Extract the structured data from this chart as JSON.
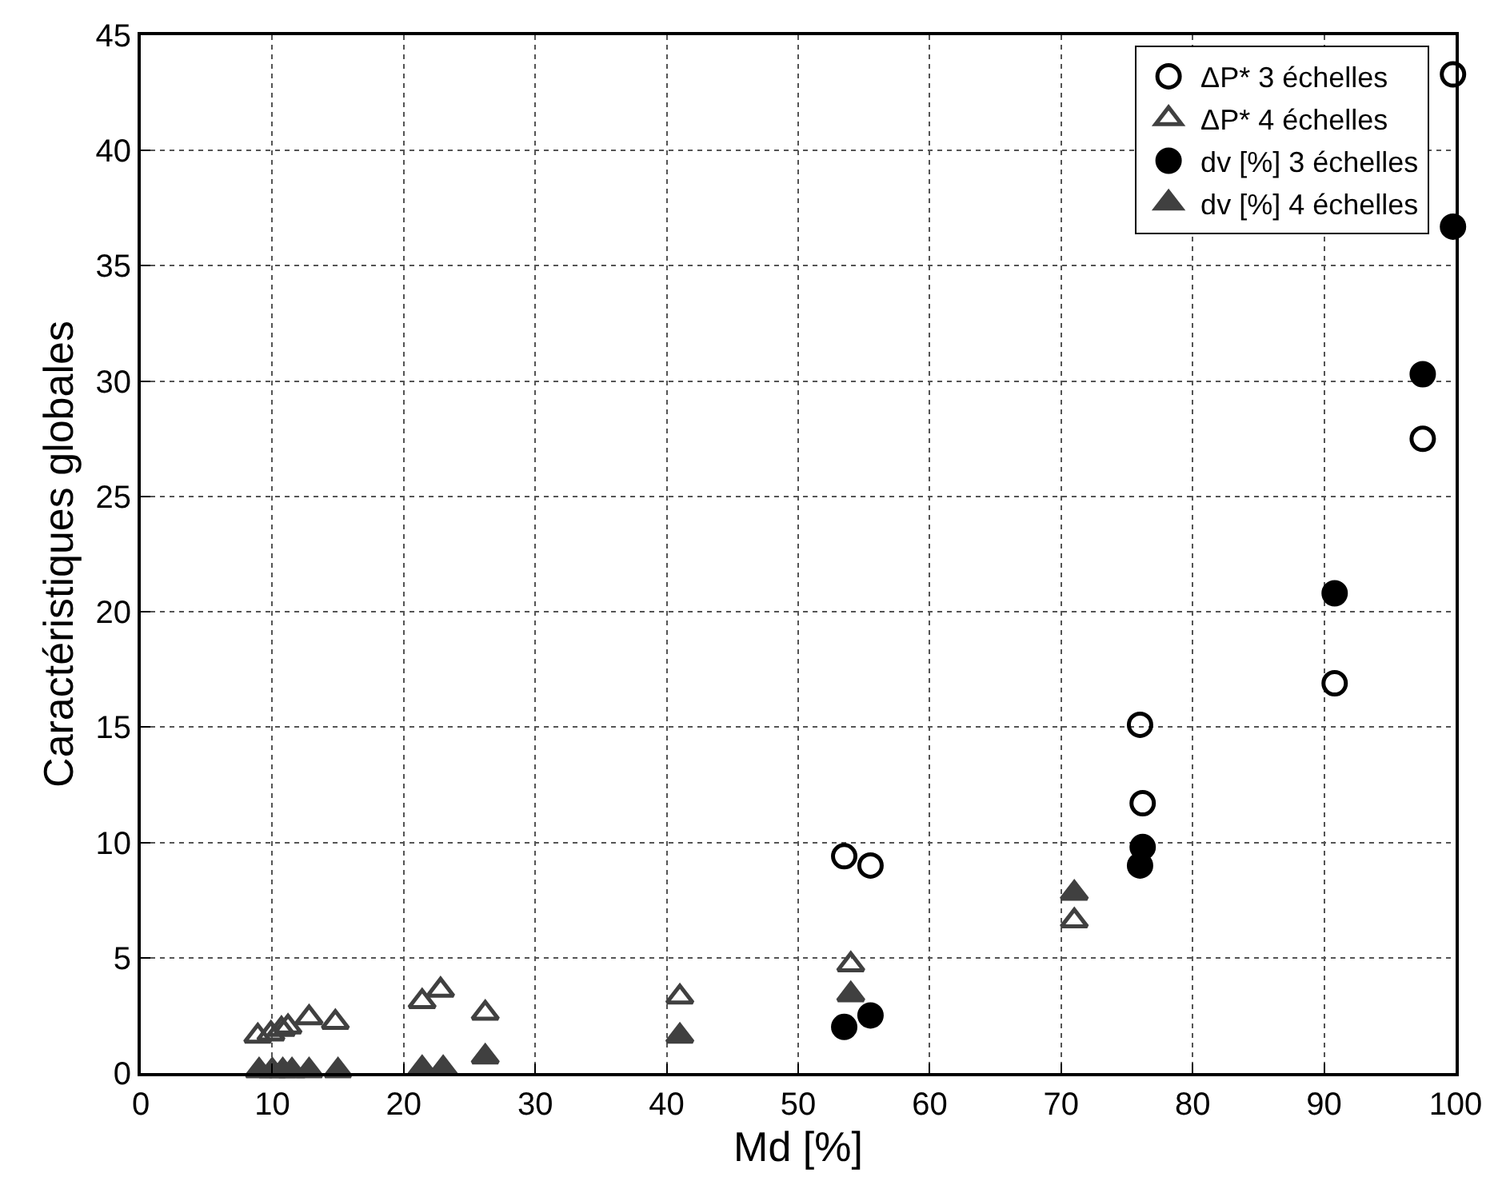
{
  "chart_data": {
    "type": "scatter",
    "xlabel": "Md [%]",
    "ylabel": "Caractéristiques globales",
    "xlim": [
      0,
      100
    ],
    "ylim": [
      0,
      45
    ],
    "xticks": [
      0,
      10,
      20,
      30,
      40,
      50,
      60,
      70,
      80,
      90,
      100
    ],
    "yticks": [
      0,
      5,
      10,
      15,
      20,
      25,
      30,
      35,
      40,
      45
    ],
    "grid": true,
    "legend": "top right",
    "series": [
      {
        "name": "ΔP* 3 échelles",
        "color": "#000000",
        "marker": "circle-open",
        "x": [
          53.5,
          55.5,
          76,
          76.2,
          90.8,
          97.5,
          99.8
        ],
        "values": [
          9.4,
          9.0,
          15.1,
          11.7,
          16.9,
          27.5,
          43.3
        ]
      },
      {
        "name": "ΔP* 4 échelles",
        "color": "#404040",
        "marker": "triangle-open",
        "x": [
          8.9,
          9.9,
          10.7,
          11.2,
          12.8,
          14.8,
          21.4,
          22.8,
          26.2,
          41,
          54,
          71
        ],
        "values": [
          1.6,
          1.7,
          1.9,
          2.0,
          2.4,
          2.2,
          3.1,
          3.6,
          2.6,
          3.3,
          4.7,
          6.6
        ]
      },
      {
        "name": "dv [%] 3 échelles",
        "color": "#000000",
        "marker": "circle",
        "x": [
          53.5,
          55.5,
          76,
          76.2,
          90.8,
          97.5,
          99.8
        ],
        "values": [
          2.0,
          2.5,
          9.0,
          9.8,
          20.8,
          30.3,
          36.7
        ]
      },
      {
        "name": "dv [%] 4 échelles",
        "color": "#404040",
        "marker": "triangle",
        "x": [
          9,
          10,
          10.8,
          11.5,
          12.8,
          15,
          21.4,
          23,
          26.2,
          41,
          54,
          71
        ],
        "values": [
          0.1,
          0.1,
          0.1,
          0.1,
          0.1,
          0.1,
          0.2,
          0.2,
          0.7,
          1.6,
          3.4,
          7.8
        ]
      }
    ]
  }
}
